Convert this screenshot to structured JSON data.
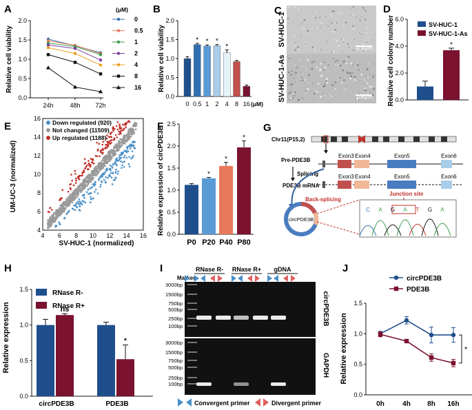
{
  "colors": {
    "navy": "#1f4e8c",
    "blue2": "#2f6fb0",
    "blue3": "#5b9bd5",
    "blue4": "#a9cde8",
    "pale": "#e6f2f8",
    "red": "#c0504d",
    "maroon": "#7b1230",
    "orange": "#e8785a",
    "grey": "#9a9a9a",
    "down": "#4a90c8",
    "up": "#c0302a",
    "black": "#111111"
  },
  "chart_data": [
    {
      "id": "A",
      "panel_label": "A",
      "type": "line",
      "ylabel": "Relative cell viability",
      "xlabel": "",
      "categories": [
        "24h",
        "48h",
        "72h"
      ],
      "ylim": [
        0,
        2.0
      ],
      "yticks": [
        "0.0",
        "0.5",
        "1.0",
        "1.5",
        "2.0"
      ],
      "legend_title": "(μM)",
      "series": [
        {
          "name": "0",
          "values": [
            1.52,
            1.35,
            1.17
          ],
          "color": "#2f6fb0",
          "marker": "circle"
        },
        {
          "name": "0.5",
          "values": [
            1.48,
            1.36,
            1.15
          ],
          "color": "#e8785a",
          "marker": "circle"
        },
        {
          "name": "1",
          "values": [
            1.42,
            1.33,
            1.12
          ],
          "color": "#3a9a4a",
          "marker": "circle"
        },
        {
          "name": "2",
          "values": [
            1.37,
            1.28,
            0.98
          ],
          "color": "#7a3fa0",
          "marker": "circle"
        },
        {
          "name": "4",
          "values": [
            1.3,
            1.15,
            0.85
          ],
          "color": "#e8a020",
          "marker": "circle"
        },
        {
          "name": "8",
          "values": [
            1.12,
            0.92,
            0.62
          ],
          "color": "#111111",
          "marker": "square"
        },
        {
          "name": "16",
          "values": [
            0.78,
            0.28,
            0.16
          ],
          "color": "#111111",
          "marker": "triangle"
        }
      ]
    },
    {
      "id": "B",
      "panel_label": "B",
      "type": "bar",
      "ylabel": "Relative cell viability",
      "xunit": "(μM)",
      "categories": [
        "0",
        "0.5",
        "1",
        "2",
        "4",
        "8",
        "16"
      ],
      "values": [
        1.0,
        1.37,
        1.33,
        1.34,
        1.15,
        0.92,
        0.27
      ],
      "errors": [
        0.05,
        0.03,
        0.03,
        0.03,
        0.08,
        0.03,
        0.03
      ],
      "stars": [
        "",
        "*",
        "*",
        "*",
        "*",
        "",
        ""
      ],
      "bar_colors": [
        "#1f4e8c",
        "#2f6fb0",
        "#5b9bd5",
        "#a9cde8",
        "#e6f2f8",
        "#c0504d",
        "#7b1230"
      ],
      "ylim": [
        0,
        2.0
      ],
      "yticks": [
        "0.0",
        "0.5",
        "1.0",
        "1.5",
        "2.0"
      ]
    },
    {
      "id": "D",
      "panel_label": "D",
      "type": "bar",
      "ylabel": "Relative cell colony number",
      "categories": [
        "SV-HUC-1",
        "SV-HUC-1-As"
      ],
      "values": [
        1.0,
        3.7
      ],
      "errors": [
        0.4,
        0.15
      ],
      "stars": [
        "",
        "*"
      ],
      "bar_colors": [
        "#1f4e8c",
        "#7b1230"
      ],
      "legend": [
        "SV-HUC-1",
        "SV-HUC-1-As"
      ],
      "ylim": [
        0,
        6.0
      ],
      "yticks": [
        "0.0",
        "2.0",
        "4.0",
        "6.0"
      ]
    },
    {
      "id": "E",
      "panel_label": "E",
      "type": "scatter",
      "xlabel": "SV-HUC-1    (normalized)",
      "ylabel": "UM-UC-3 (normalized)",
      "xlim": [
        4,
        16
      ],
      "ylim": [
        4,
        16
      ],
      "xticks": [
        "4",
        "6",
        "8",
        "10",
        "12",
        "14",
        "16"
      ],
      "yticks": [
        "4",
        "6",
        "8",
        "10",
        "12",
        "14",
        "16"
      ],
      "legend": [
        {
          "label": "Down regulated (920)",
          "color": "#4a90c8"
        },
        {
          "label": "Not changed (11509)",
          "color": "#9a9a9a"
        },
        {
          "label": "Up regulated (1188)",
          "color": "#c0302a"
        }
      ]
    },
    {
      "id": "F",
      "panel_label": "F",
      "type": "bar",
      "ylabel": "Relative expression of circPDE3B",
      "categories": [
        "P0",
        "P20",
        "P40",
        "P80"
      ],
      "values": [
        1.12,
        1.27,
        1.55,
        1.97
      ],
      "errors": [
        0.03,
        0.02,
        0.08,
        0.15
      ],
      "stars": [
        "",
        "*",
        "*",
        "*"
      ],
      "bar_colors": [
        "#1f4e8c",
        "#5b9bd5",
        "#e8785a",
        "#7b1230"
      ],
      "ylim": [
        0,
        2.5
      ],
      "yticks": [
        "0.0",
        "0.5",
        "1.0",
        "1.5",
        "2.0",
        "2.5"
      ]
    },
    {
      "id": "H",
      "panel_label": "H",
      "type": "bar",
      "ylabel": "Relative expression",
      "categories": [
        "circPDE3B",
        "PDE3B"
      ],
      "series": [
        {
          "name": "RNase R-",
          "values": [
            1.0,
            1.0
          ],
          "errors": [
            0.08,
            0.04
          ],
          "color": "#1f4e8c"
        },
        {
          "name": "RNase R+",
          "values": [
            1.14,
            0.52
          ],
          "errors": [
            0.02,
            0.2
          ],
          "color": "#7b1230"
        }
      ],
      "annotations": [
        "ns",
        "*"
      ],
      "ylim": [
        0,
        1.5
      ],
      "yticks": [
        "0.0",
        "0.5",
        "1.0",
        "1.5"
      ]
    },
    {
      "id": "J",
      "panel_label": "J",
      "type": "line",
      "ylabel": "Relative expression",
      "categories": [
        "0h",
        "4h",
        "8h",
        "16h"
      ],
      "series": [
        {
          "name": "circPDE3B",
          "values": [
            1.0,
            1.22,
            0.98,
            0.98
          ],
          "errors": [
            0.04,
            0.06,
            0.13,
            0.12
          ],
          "color": "#1f4e8c",
          "marker": "circle"
        },
        {
          "name": "PDE3B",
          "values": [
            0.99,
            0.88,
            0.61,
            0.52
          ],
          "errors": [
            0.04,
            0.02,
            0.06,
            0.06
          ],
          "color": "#7b1230",
          "marker": "square"
        }
      ],
      "significance": "*",
      "ylim": [
        0,
        1.5
      ],
      "yticks": [
        "0.0",
        "0.5",
        "1.0",
        "1.5"
      ]
    }
  ],
  "panel_c": {
    "label": "C",
    "rows": [
      "SV-HUC-1",
      "SV-HUC-1-As"
    ],
    "scale_bar": "100μm"
  },
  "panel_g": {
    "label": "G",
    "chromosome": "Chr11(P15,2)",
    "pre_label": "Pre-PDE3B",
    "splicing": "Splicing",
    "mrna_label": "PDE3B mRNA",
    "exons": [
      "Exon3",
      "Exon4",
      "Exon5",
      "Exon6"
    ],
    "back_splicing": "Back-splicing",
    "circ_label": "circPDE3B",
    "junction": "Junction site",
    "bases": [
      "C",
      "A",
      "G",
      "A",
      "T",
      "G",
      "A"
    ]
  },
  "panel_i": {
    "label": "I",
    "marker": "Marker",
    "groups": [
      "RNase R-",
      "RNase R+",
      "gDNA"
    ],
    "ladder": [
      "3000bp",
      "1500bp",
      "750bp",
      "500bp",
      "250bp",
      "100bp"
    ],
    "top_gene": "circPDE3B",
    "bottom_gene": "GAPDH",
    "convergent": "Convergent primer",
    "divergent": "Divergent primer"
  }
}
